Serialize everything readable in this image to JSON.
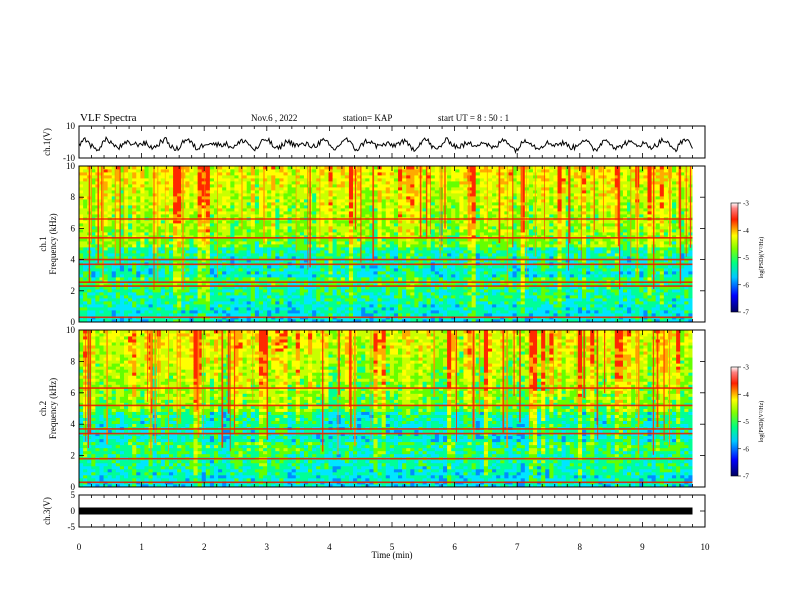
{
  "header": {
    "title": "VLF Spectra",
    "date": "Nov.6  , 2022",
    "station": "station= KAP",
    "start": "start  UT  =   8  : 50 : 1"
  },
  "chart_data": [
    {
      "type": "line",
      "panel": "ch1-waveform",
      "ylabel": "ch.1(V)",
      "ylim": [
        -10,
        10
      ],
      "yticks": [
        "10",
        "-10"
      ],
      "xlim": [
        0,
        10
      ],
      "series": [
        {
          "color": "#000000",
          "description_range": [
            -6,
            3
          ]
        }
      ]
    },
    {
      "type": "heatmap",
      "panel": "ch1-spectrogram",
      "ylabel": "ch.1\nFrequency (kHz)",
      "ylim": [
        0,
        10
      ],
      "yticks": [
        "0",
        "2",
        "4",
        "6",
        "8",
        "10"
      ],
      "xlim": [
        0,
        9.8
      ],
      "colorbar": {
        "label": "log(PSD)(V²/Hz)",
        "range": [
          -7,
          -3
        ],
        "ticks": [
          "-3",
          "-4",
          "-5",
          "-6",
          "-7"
        ]
      },
      "bands_khz": [
        0.3,
        2.3,
        2.55,
        3.7,
        4.0,
        5.4,
        6.6
      ]
    },
    {
      "type": "heatmap",
      "panel": "ch2-spectrogram",
      "ylabel": "ch.2\nFrequency (kHz)",
      "ylim": [
        0,
        10
      ],
      "yticks": [
        "0",
        "2",
        "4",
        "6",
        "8",
        "10"
      ],
      "xlim": [
        0,
        9.8
      ],
      "colorbar": {
        "label": "log(PSD)(V²/Hz)",
        "range": [
          -7,
          -3
        ],
        "ticks": [
          "-3",
          "-4",
          "-5",
          "-6",
          "-7"
        ]
      },
      "bands_khz": [
        0.3,
        1.8,
        3.4,
        3.7,
        5.2,
        6.3
      ]
    },
    {
      "type": "line",
      "panel": "ch3-waveform",
      "ylabel": "ch.3(V)",
      "ylim": [
        -5,
        5
      ],
      "yticks": [
        "5",
        "0",
        "-5"
      ],
      "xlim": [
        0,
        10
      ],
      "series": [
        {
          "color": "#000000",
          "constant_value": 0
        }
      ]
    }
  ],
  "xaxis": {
    "label": "Time  (min)",
    "ticks": [
      "0",
      "1",
      "2",
      "3",
      "4",
      "5",
      "6",
      "7",
      "8",
      "9",
      "10"
    ],
    "range": [
      0,
      10
    ]
  },
  "colormap": [
    "#00004a",
    "#0000e0",
    "#00a0ff",
    "#00ffff",
    "#00ff80",
    "#40ff00",
    "#c0ff00",
    "#ffff00",
    "#ffa000",
    "#ff2000",
    "#c00000",
    "#ffffff"
  ]
}
